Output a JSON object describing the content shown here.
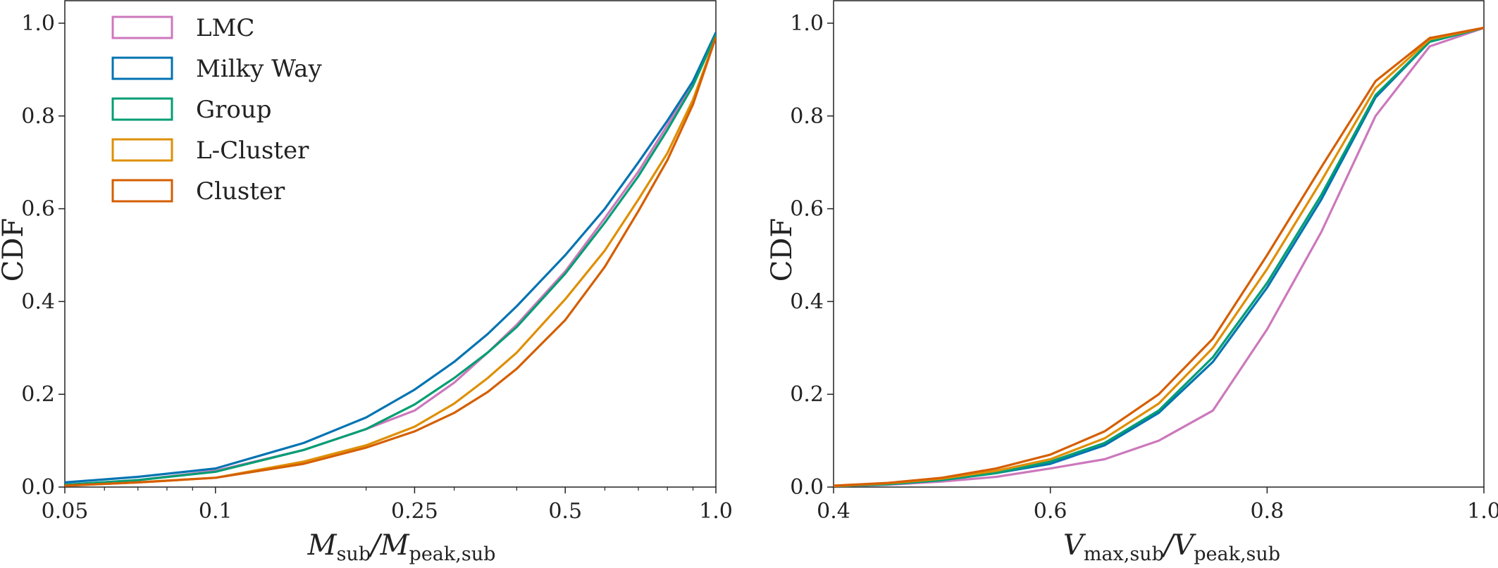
{
  "figure": {
    "panel_left": {
      "ylabel": "CDF",
      "xlabel": {
        "pre": "M",
        "sub1": "sub",
        "mid": "/M",
        "sub2": "peak,sub"
      }
    },
    "panel_right": {
      "ylabel": "CDF",
      "xlabel": {
        "pre": "V",
        "sub1": "max,sub",
        "mid": "/V",
        "sub2": "peak,sub"
      }
    }
  },
  "chart_data": [
    {
      "type": "line",
      "title": "",
      "xlabel": "M_sub/M_peak,sub",
      "ylabel": "CDF",
      "xscale": "log",
      "xlim": [
        0.05,
        1.0
      ],
      "ylim": [
        0.0,
        1.05
      ],
      "xticks": [
        0.05,
        0.1,
        0.25,
        0.5,
        1.0
      ],
      "xtick_labels": [
        "0.05",
        "0.1",
        "0.25",
        "0.5",
        "1.0"
      ],
      "yticks": [
        0.0,
        0.2,
        0.4,
        0.6,
        0.8,
        1.0
      ],
      "ytick_labels": [
        "0.0",
        "0.2",
        "0.4",
        "0.6",
        "0.8",
        "1.0"
      ],
      "grid": false,
      "legend": {
        "location": "top-left",
        "entries": [
          "LMC",
          "Milky Way",
          "Group",
          "L-Cluster",
          "Cluster"
        ]
      },
      "x": [
        0.05,
        0.07,
        0.1,
        0.15,
        0.2,
        0.25,
        0.3,
        0.35,
        0.4,
        0.5,
        0.6,
        0.7,
        0.8,
        0.9,
        1.0
      ],
      "series": [
        {
          "name": "LMC",
          "color": "#cc78bc",
          "values": [
            0.005,
            0.015,
            0.035,
            0.08,
            0.125,
            0.165,
            0.225,
            0.29,
            0.35,
            0.465,
            0.58,
            0.68,
            0.78,
            0.87,
            0.975
          ]
        },
        {
          "name": "Milky Way",
          "color": "#0173b2",
          "values": [
            0.01,
            0.022,
            0.04,
            0.095,
            0.15,
            0.21,
            0.27,
            0.33,
            0.39,
            0.5,
            0.6,
            0.7,
            0.79,
            0.875,
            0.98
          ]
        },
        {
          "name": "Group",
          "color": "#029e73",
          "values": [
            0.005,
            0.015,
            0.033,
            0.08,
            0.125,
            0.178,
            0.235,
            0.29,
            0.345,
            0.46,
            0.57,
            0.67,
            0.77,
            0.865,
            0.975
          ]
        },
        {
          "name": "L-Cluster",
          "color": "#de8f05",
          "values": [
            0.003,
            0.01,
            0.02,
            0.055,
            0.09,
            0.13,
            0.18,
            0.235,
            0.29,
            0.405,
            0.51,
            0.62,
            0.72,
            0.835,
            0.97
          ]
        },
        {
          "name": "Cluster",
          "color": "#d55e00",
          "values": [
            0.003,
            0.01,
            0.02,
            0.05,
            0.085,
            0.12,
            0.16,
            0.205,
            0.255,
            0.36,
            0.475,
            0.595,
            0.705,
            0.825,
            0.97
          ]
        }
      ]
    },
    {
      "type": "line",
      "title": "",
      "xlabel": "V_max,sub/V_peak,sub",
      "ylabel": "CDF",
      "xscale": "linear",
      "xlim": [
        0.4,
        1.0
      ],
      "ylim": [
        0.0,
        1.05
      ],
      "xticks": [
        0.4,
        0.6,
        0.8,
        1.0
      ],
      "xtick_labels": [
        "0.4",
        "0.6",
        "0.8",
        "1.0"
      ],
      "yticks": [
        0.0,
        0.2,
        0.4,
        0.6,
        0.8,
        1.0
      ],
      "ytick_labels": [
        "0.0",
        "0.2",
        "0.4",
        "0.6",
        "0.8",
        "1.0"
      ],
      "grid": false,
      "x": [
        0.4,
        0.45,
        0.5,
        0.55,
        0.6,
        0.65,
        0.7,
        0.75,
        0.8,
        0.85,
        0.9,
        0.95,
        1.0
      ],
      "series": [
        {
          "name": "LMC",
          "color": "#cc78bc",
          "values": [
            0.002,
            0.005,
            0.012,
            0.022,
            0.04,
            0.06,
            0.1,
            0.165,
            0.34,
            0.55,
            0.8,
            0.95,
            0.99
          ]
        },
        {
          "name": "Milky Way",
          "color": "#0173b2",
          "values": [
            0.002,
            0.006,
            0.015,
            0.03,
            0.05,
            0.09,
            0.16,
            0.27,
            0.43,
            0.62,
            0.84,
            0.96,
            0.99
          ]
        },
        {
          "name": "Group",
          "color": "#029e73",
          "values": [
            0.002,
            0.006,
            0.015,
            0.03,
            0.055,
            0.095,
            0.165,
            0.28,
            0.44,
            0.63,
            0.845,
            0.96,
            0.99
          ]
        },
        {
          "name": "L-Cluster",
          "color": "#de8f05",
          "values": [
            0.002,
            0.008,
            0.018,
            0.035,
            0.06,
            0.105,
            0.18,
            0.3,
            0.47,
            0.66,
            0.86,
            0.965,
            0.99
          ]
        },
        {
          "name": "Cluster",
          "color": "#d55e00",
          "values": [
            0.003,
            0.009,
            0.02,
            0.04,
            0.07,
            0.12,
            0.2,
            0.32,
            0.5,
            0.69,
            0.875,
            0.968,
            0.99
          ]
        }
      ]
    }
  ]
}
